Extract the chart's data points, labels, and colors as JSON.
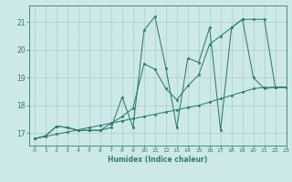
{
  "xlabel": "Humidex (Indice chaleur)",
  "bg_color": "#cce8e8",
  "line_color": "#2d7d72",
  "grid_color": "#aacece",
  "xlim": [
    -0.5,
    23
  ],
  "ylim": [
    16.55,
    21.6
  ],
  "yticks": [
    17,
    18,
    19,
    20,
    21
  ],
  "xticks": [
    0,
    1,
    2,
    3,
    4,
    5,
    6,
    7,
    8,
    9,
    10,
    11,
    12,
    13,
    14,
    15,
    16,
    17,
    18,
    19,
    20,
    21,
    22,
    23
  ],
  "s1_x": [
    0,
    1,
    2,
    3,
    4,
    5,
    6,
    7,
    8,
    9,
    10,
    11,
    12,
    13,
    14,
    15,
    16,
    17,
    18,
    19,
    20,
    21,
    22,
    23
  ],
  "s1_y": [
    16.8,
    16.9,
    17.25,
    17.2,
    17.1,
    17.1,
    17.1,
    17.2,
    18.3,
    17.2,
    20.7,
    21.2,
    19.35,
    17.2,
    19.7,
    19.55,
    20.8,
    17.1,
    20.8,
    21.1,
    19.0,
    18.6,
    18.65,
    18.65
  ],
  "s2_x": [
    0,
    1,
    2,
    3,
    4,
    5,
    6,
    7,
    8,
    9,
    10,
    11,
    12,
    13,
    14,
    15,
    16,
    17,
    18,
    19,
    20,
    21,
    22,
    23
  ],
  "s2_y": [
    16.8,
    16.9,
    17.25,
    17.2,
    17.1,
    17.1,
    17.1,
    17.35,
    17.6,
    17.9,
    19.5,
    19.3,
    18.6,
    18.2,
    18.7,
    19.1,
    20.2,
    20.5,
    20.8,
    21.1,
    21.1,
    21.1,
    18.65,
    18.65
  ],
  "s3_x": [
    0,
    1,
    2,
    3,
    4,
    5,
    6,
    7,
    8,
    9,
    10,
    11,
    12,
    13,
    14,
    15,
    16,
    17,
    18,
    19,
    20,
    21,
    22,
    23
  ],
  "s3_y": [
    16.8,
    16.88,
    16.96,
    17.04,
    17.12,
    17.2,
    17.28,
    17.36,
    17.44,
    17.52,
    17.6,
    17.68,
    17.76,
    17.84,
    17.92,
    18.0,
    18.12,
    18.24,
    18.36,
    18.48,
    18.6,
    18.65,
    18.65,
    18.65
  ]
}
